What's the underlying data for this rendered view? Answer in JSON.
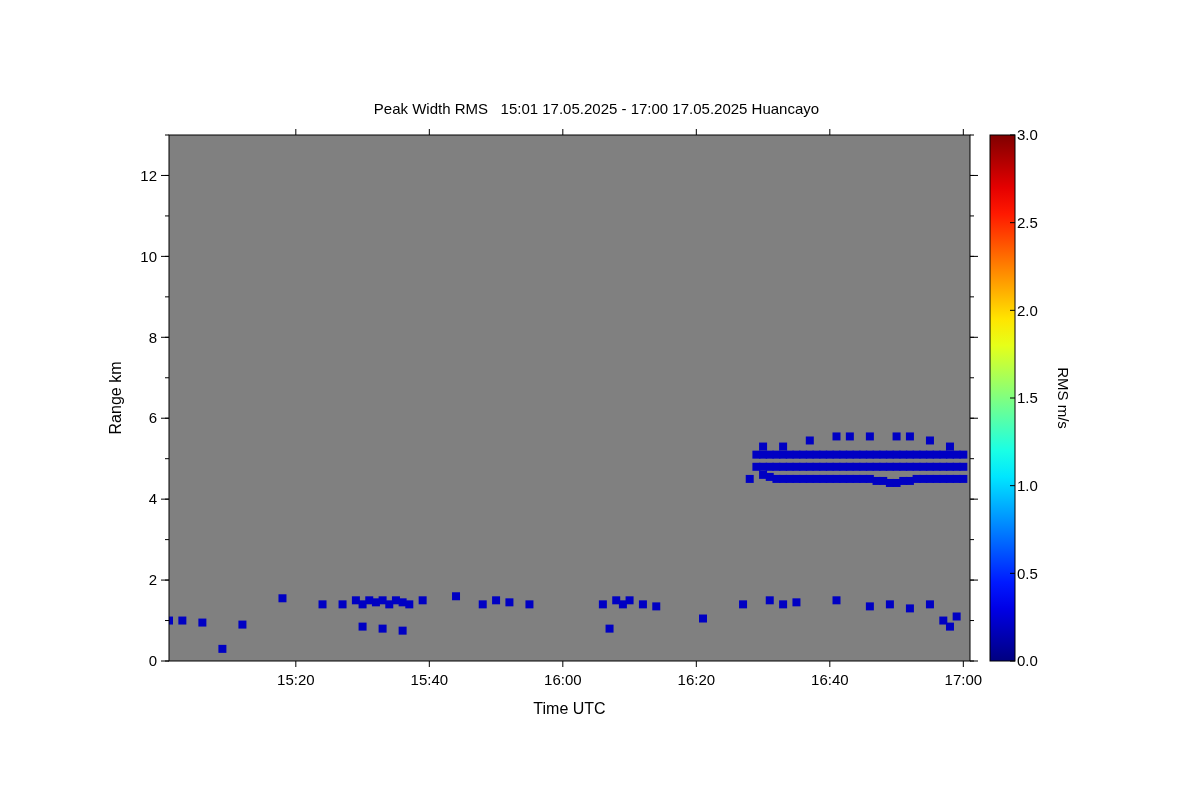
{
  "chart_data": {
    "type": "scatter",
    "title": "Peak Width RMS   15:01 17.05.2025 - 17:00 17.05.2025 Huancayo",
    "xlabel": "Time UTC",
    "ylabel": "Range km",
    "clabel": "RMS m/s",
    "marker": "square",
    "xlim": [
      "2025-05-17T15:01",
      "2025-05-17T17:01"
    ],
    "xticks": [
      {
        "value": "2025-05-17T15:20",
        "label": "15:20"
      },
      {
        "value": "2025-05-17T15:40",
        "label": "15:40"
      },
      {
        "value": "2025-05-17T16:00",
        "label": "16:00"
      },
      {
        "value": "2025-05-17T16:20",
        "label": "16:20"
      },
      {
        "value": "2025-05-17T16:40",
        "label": "16:40"
      },
      {
        "value": "2025-05-17T17:00",
        "label": "17:00"
      }
    ],
    "ylim": [
      0,
      13
    ],
    "yticks": [
      0,
      2,
      4,
      6,
      8,
      10,
      12
    ],
    "clim": [
      0,
      3
    ],
    "cticks": [
      {
        "value": 0,
        "label": "0.0"
      },
      0.5,
      {
        "value": 1,
        "label": "1.0"
      },
      1.5,
      {
        "value": 2,
        "label": "2.0"
      },
      2.5,
      {
        "value": 3,
        "label": "3.0"
      }
    ],
    "series": [
      {
        "x": [
          "2025-05-17T16:28",
          "2025-05-17T16:30",
          "2025-05-17T16:31",
          "2025-05-17T16:32",
          "2025-05-17T16:33",
          "2025-05-17T16:34",
          "2025-05-17T16:35",
          "2025-05-17T16:36",
          "2025-05-17T16:37",
          "2025-05-17T16:38",
          "2025-05-17T16:39",
          "2025-05-17T16:40",
          "2025-05-17T16:41",
          "2025-05-17T16:42",
          "2025-05-17T16:43",
          "2025-05-17T16:44",
          "2025-05-17T16:45",
          "2025-05-17T16:46",
          "2025-05-17T16:47",
          "2025-05-17T16:48",
          "2025-05-17T16:49",
          "2025-05-17T16:50",
          "2025-05-17T16:51",
          "2025-05-17T16:52",
          "2025-05-17T16:53",
          "2025-05-17T16:54",
          "2025-05-17T16:55",
          "2025-05-17T16:56",
          "2025-05-17T16:57",
          "2025-05-17T16:58",
          "2025-05-17T16:59",
          "2025-05-17T17:00"
        ],
        "values": [
          4.5,
          4.6,
          4.55,
          4.5,
          4.5,
          4.5,
          4.5,
          4.5,
          4.5,
          4.5,
          4.5,
          4.5,
          4.5,
          4.5,
          4.5,
          4.5,
          4.5,
          4.5,
          4.45,
          4.45,
          4.4,
          4.4,
          4.45,
          4.45,
          4.5,
          4.5,
          4.5,
          4.5,
          4.5,
          4.5,
          4.5,
          4.5
        ],
        "cvalues": [
          0.2,
          0.2,
          0.2,
          0.2,
          0.2,
          0.2,
          0.2,
          0.2,
          0.2,
          0.2,
          0.2,
          0.2,
          0.2,
          0.2,
          0.2,
          0.2,
          0.2,
          0.2,
          0.2,
          0.2,
          0.2,
          0.2,
          0.2,
          0.2,
          0.2,
          0.2,
          0.2,
          0.2,
          0.2,
          0.2,
          0.2,
          0.2
        ]
      },
      {
        "x": [
          "2025-05-17T16:29",
          "2025-05-17T16:30",
          "2025-05-17T16:31",
          "2025-05-17T16:32",
          "2025-05-17T16:33",
          "2025-05-17T16:34",
          "2025-05-17T16:35",
          "2025-05-17T16:36",
          "2025-05-17T16:37",
          "2025-05-17T16:38",
          "2025-05-17T16:39",
          "2025-05-17T16:40",
          "2025-05-17T16:41",
          "2025-05-17T16:42",
          "2025-05-17T16:43",
          "2025-05-17T16:44",
          "2025-05-17T16:45",
          "2025-05-17T16:46",
          "2025-05-17T16:47",
          "2025-05-17T16:48",
          "2025-05-17T16:49",
          "2025-05-17T16:50",
          "2025-05-17T16:51",
          "2025-05-17T16:52",
          "2025-05-17T16:53",
          "2025-05-17T16:54",
          "2025-05-17T16:55",
          "2025-05-17T16:56",
          "2025-05-17T16:57",
          "2025-05-17T16:58",
          "2025-05-17T16:59",
          "2025-05-17T17:00"
        ],
        "values": [
          4.8,
          4.8,
          4.8,
          4.8,
          4.8,
          4.8,
          4.8,
          4.8,
          4.8,
          4.8,
          4.8,
          4.8,
          4.8,
          4.8,
          4.8,
          4.8,
          4.8,
          4.8,
          4.8,
          4.8,
          4.8,
          4.8,
          4.8,
          4.8,
          4.8,
          4.8,
          4.8,
          4.8,
          4.8,
          4.8,
          4.8,
          4.8
        ],
        "cvalues": [
          0.2,
          0.2,
          0.2,
          0.2,
          0.2,
          0.2,
          0.2,
          0.2,
          0.2,
          0.2,
          0.2,
          0.2,
          0.2,
          0.2,
          0.2,
          0.2,
          0.2,
          0.2,
          0.2,
          0.2,
          0.2,
          0.2,
          0.2,
          0.2,
          0.2,
          0.2,
          0.2,
          0.2,
          0.2,
          0.2,
          0.2,
          0.2
        ]
      },
      {
        "x": [
          "2025-05-17T16:29",
          "2025-05-17T16:30",
          "2025-05-17T16:31",
          "2025-05-17T16:32",
          "2025-05-17T16:33",
          "2025-05-17T16:34",
          "2025-05-17T16:35",
          "2025-05-17T16:36",
          "2025-05-17T16:37",
          "2025-05-17T16:38",
          "2025-05-17T16:39",
          "2025-05-17T16:40",
          "2025-05-17T16:41",
          "2025-05-17T16:42",
          "2025-05-17T16:43",
          "2025-05-17T16:44",
          "2025-05-17T16:45",
          "2025-05-17T16:46",
          "2025-05-17T16:47",
          "2025-05-17T16:48",
          "2025-05-17T16:49",
          "2025-05-17T16:50",
          "2025-05-17T16:51",
          "2025-05-17T16:52",
          "2025-05-17T16:53",
          "2025-05-17T16:54",
          "2025-05-17T16:55",
          "2025-05-17T16:56",
          "2025-05-17T16:57",
          "2025-05-17T16:58",
          "2025-05-17T16:59",
          "2025-05-17T17:00"
        ],
        "values": [
          5.1,
          5.1,
          5.1,
          5.1,
          5.1,
          5.1,
          5.1,
          5.1,
          5.1,
          5.1,
          5.1,
          5.1,
          5.1,
          5.1,
          5.1,
          5.1,
          5.1,
          5.1,
          5.1,
          5.1,
          5.1,
          5.1,
          5.1,
          5.1,
          5.1,
          5.1,
          5.1,
          5.1,
          5.1,
          5.1,
          5.1,
          5.1
        ],
        "cvalues": [
          0.2,
          0.2,
          0.2,
          0.2,
          0.2,
          0.2,
          0.2,
          0.2,
          0.2,
          0.2,
          0.2,
          0.2,
          0.2,
          0.2,
          0.2,
          0.2,
          0.2,
          0.2,
          0.2,
          0.2,
          0.2,
          0.2,
          0.2,
          0.2,
          0.2,
          0.2,
          0.2,
          0.2,
          0.2,
          0.2,
          0.2,
          0.2
        ]
      },
      {
        "x": [
          "2025-05-17T16:30",
          "2025-05-17T16:33",
          "2025-05-17T16:37",
          "2025-05-17T16:41",
          "2025-05-17T16:43",
          "2025-05-17T16:46",
          "2025-05-17T16:50",
          "2025-05-17T16:52",
          "2025-05-17T16:55",
          "2025-05-17T16:58"
        ],
        "values": [
          5.3,
          5.3,
          5.45,
          5.55,
          5.55,
          5.55,
          5.55,
          5.55,
          5.45,
          5.3
        ],
        "cvalues": [
          0.2,
          0.2,
          0.2,
          0.2,
          0.2,
          0.2,
          0.2,
          0.2,
          0.2,
          0.2
        ]
      },
      {
        "x": [
          "2025-05-17T15:01",
          "2025-05-17T15:03",
          "2025-05-17T15:06",
          "2025-05-17T15:09",
          "2025-05-17T15:12",
          "2025-05-17T15:18",
          "2025-05-17T15:24",
          "2025-05-17T15:27",
          "2025-05-17T15:29",
          "2025-05-17T15:30",
          "2025-05-17T15:31",
          "2025-05-17T15:32",
          "2025-05-17T15:33",
          "2025-05-17T15:34",
          "2025-05-17T15:35",
          "2025-05-17T15:36",
          "2025-05-17T15:37",
          "2025-05-17T15:30",
          "2025-05-17T15:33",
          "2025-05-17T15:36",
          "2025-05-17T15:39",
          "2025-05-17T15:44",
          "2025-05-17T15:48",
          "2025-05-17T15:50",
          "2025-05-17T15:52",
          "2025-05-17T15:55",
          "2025-05-17T16:06",
          "2025-05-17T16:07",
          "2025-05-17T16:08",
          "2025-05-17T16:09",
          "2025-05-17T16:10",
          "2025-05-17T16:12",
          "2025-05-17T16:14",
          "2025-05-17T16:21",
          "2025-05-17T16:27",
          "2025-05-17T16:31",
          "2025-05-17T16:33",
          "2025-05-17T16:35",
          "2025-05-17T16:41",
          "2025-05-17T16:46",
          "2025-05-17T16:49",
          "2025-05-17T16:52",
          "2025-05-17T16:55",
          "2025-05-17T16:57",
          "2025-05-17T16:58",
          "2025-05-17T16:59"
        ],
        "values": [
          1.0,
          1.0,
          0.95,
          0.3,
          0.9,
          1.55,
          1.4,
          1.4,
          1.5,
          1.4,
          1.5,
          1.45,
          1.5,
          1.4,
          1.5,
          1.45,
          1.4,
          0.85,
          0.8,
          0.75,
          1.5,
          1.6,
          1.4,
          1.5,
          1.45,
          1.4,
          1.4,
          0.8,
          1.5,
          1.4,
          1.5,
          1.4,
          1.35,
          1.05,
          1.4,
          1.5,
          1.4,
          1.45,
          1.5,
          1.35,
          1.4,
          1.3,
          1.4,
          1.0,
          0.85,
          1.1
        ],
        "cvalues": [
          0.2,
          0.2,
          0.2,
          0.2,
          0.2,
          0.2,
          0.2,
          0.2,
          0.2,
          0.2,
          0.2,
          0.2,
          0.2,
          0.2,
          0.2,
          0.2,
          0.2,
          0.2,
          0.2,
          0.2,
          0.2,
          0.2,
          0.2,
          0.2,
          0.2,
          0.2,
          0.2,
          0.2,
          0.2,
          0.2,
          0.2,
          0.2,
          0.2,
          0.2,
          0.2,
          0.2,
          0.2,
          0.2,
          0.2,
          0.2,
          0.2,
          0.2,
          0.2,
          0.2,
          0.2,
          0.2
        ]
      }
    ]
  }
}
